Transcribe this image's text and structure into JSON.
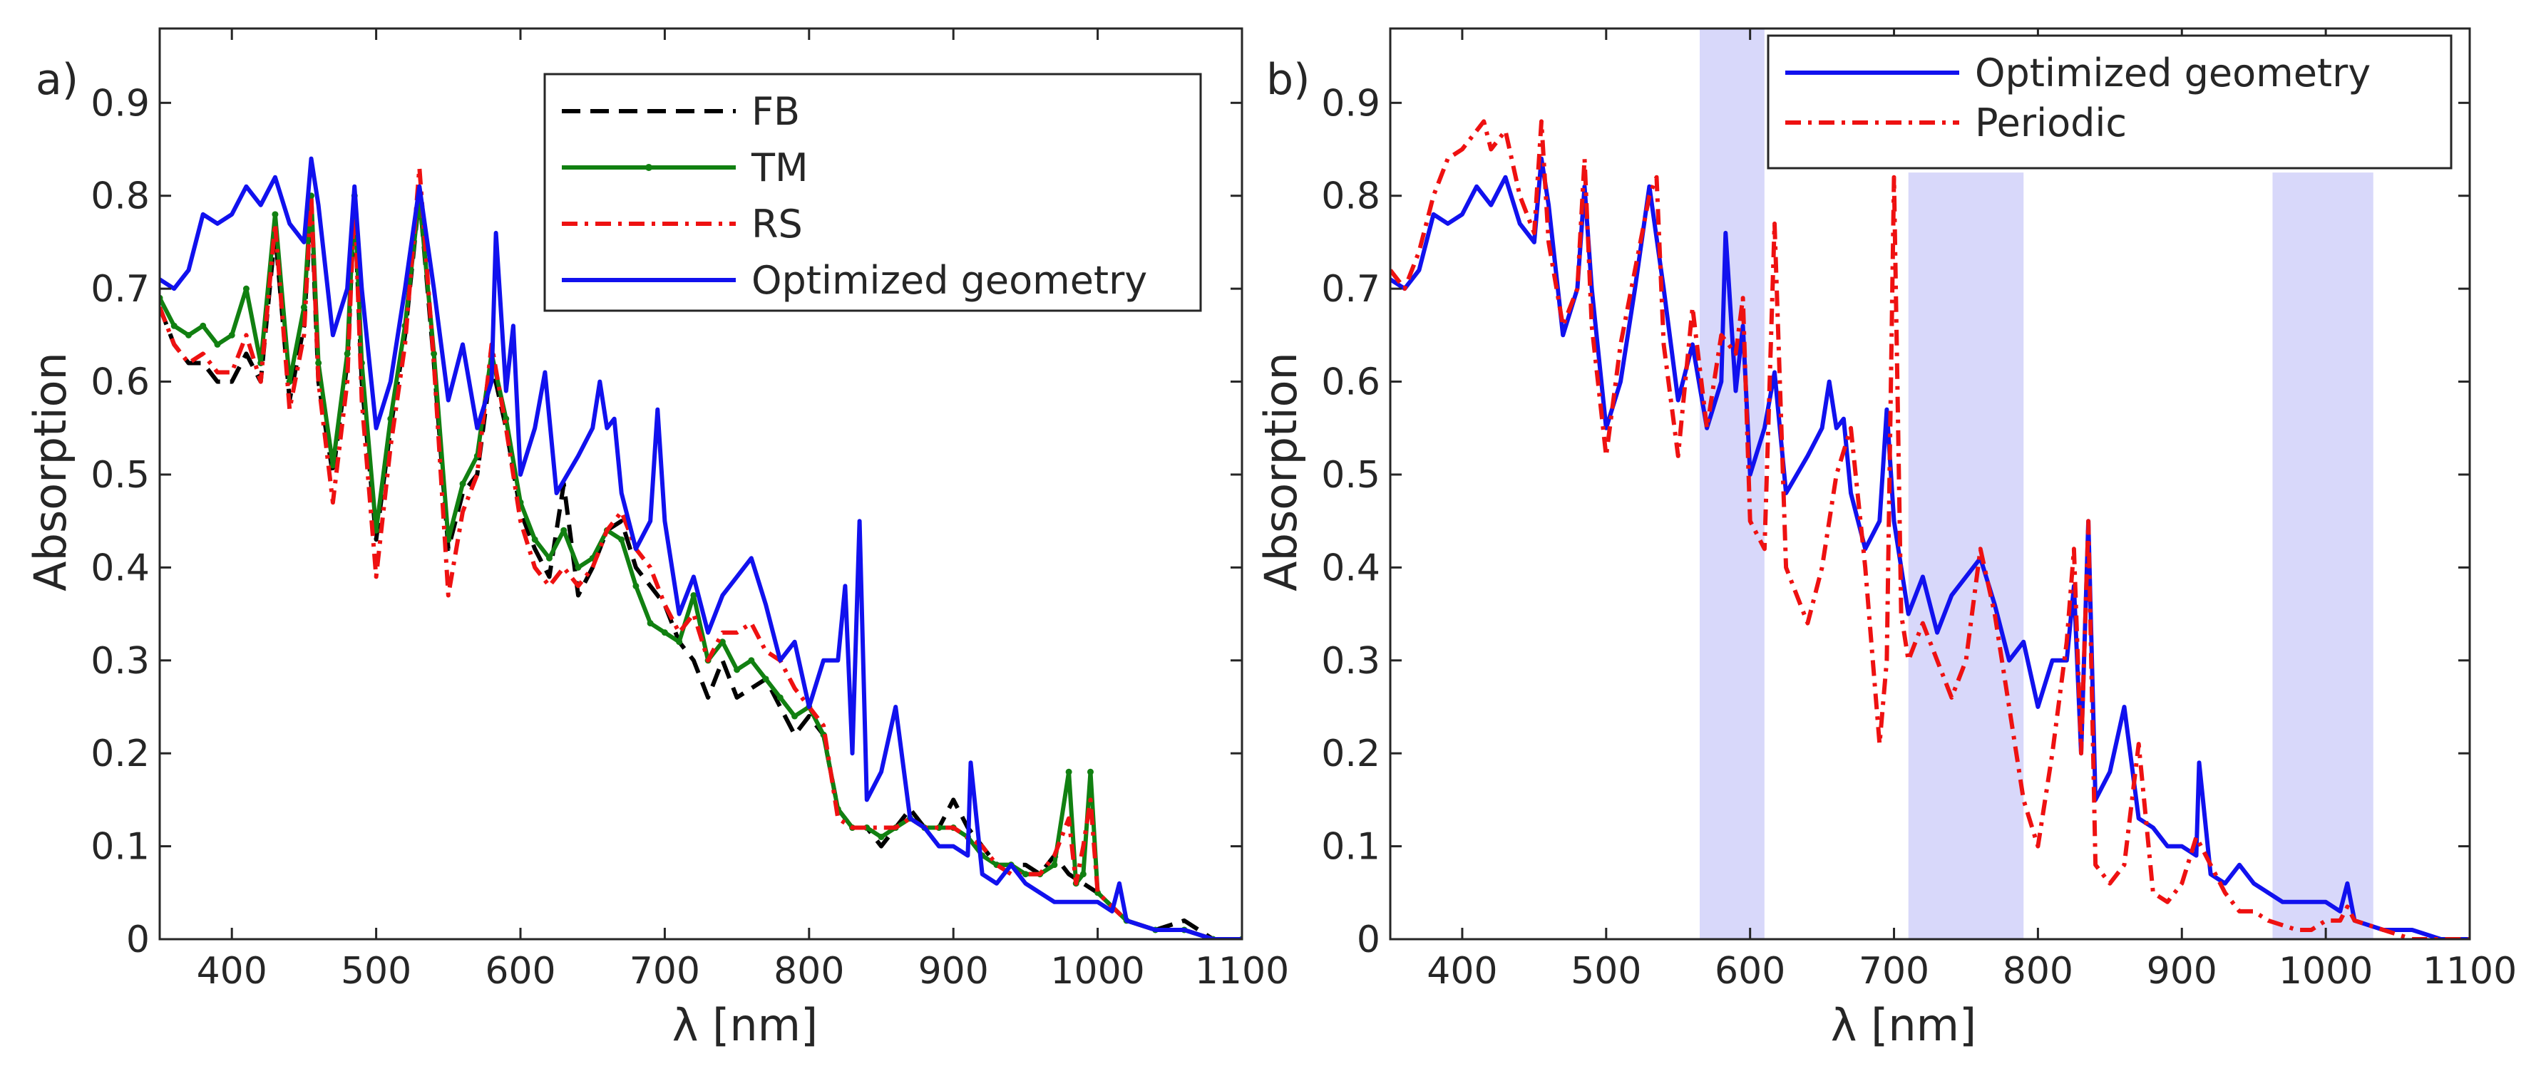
{
  "chart_data": [
    {
      "type": "line",
      "panel_label": "a)",
      "xlabel": "λ [nm]",
      "ylabel": "Absorption",
      "xlim": [
        350,
        1100
      ],
      "ylim": [
        0,
        0.98
      ],
      "xticks": [
        400,
        500,
        600,
        700,
        800,
        900,
        1000,
        1100
      ],
      "yticks": [
        0,
        0.1,
        0.2,
        0.3,
        0.4,
        0.5,
        0.6,
        0.7,
        0.8,
        0.9
      ],
      "ytick_labels": [
        "0",
        "0.1",
        "0.2",
        "0.3",
        "0.4",
        "0.5",
        "0.6",
        "0.7",
        "0.8",
        "0.9"
      ],
      "grid": false,
      "legend_position": "top-right",
      "series": [
        {
          "name": "FB",
          "color": "#000000",
          "style": "dashed",
          "x": [
            350,
            360,
            370,
            380,
            390,
            400,
            410,
            420,
            430,
            440,
            450,
            455,
            460,
            470,
            480,
            485,
            490,
            500,
            510,
            520,
            530,
            540,
            550,
            560,
            570,
            580,
            590,
            600,
            610,
            620,
            630,
            640,
            650,
            660,
            670,
            680,
            690,
            700,
            710,
            720,
            730,
            740,
            750,
            760,
            770,
            780,
            790,
            800,
            810,
            820,
            830,
            840,
            850,
            860,
            870,
            880,
            890,
            900,
            910,
            920,
            930,
            940,
            950,
            960,
            970,
            980,
            990,
            1000,
            1020,
            1040,
            1060,
            1080,
            1100
          ],
          "y": [
            0.68,
            0.64,
            0.62,
            0.62,
            0.6,
            0.6,
            0.63,
            0.6,
            0.76,
            0.58,
            0.66,
            0.79,
            0.6,
            0.5,
            0.62,
            0.79,
            0.6,
            0.43,
            0.55,
            0.65,
            0.8,
            0.62,
            0.42,
            0.48,
            0.5,
            0.62,
            0.55,
            0.46,
            0.42,
            0.39,
            0.49,
            0.37,
            0.4,
            0.44,
            0.45,
            0.4,
            0.38,
            0.36,
            0.32,
            0.3,
            0.26,
            0.3,
            0.26,
            0.27,
            0.28,
            0.25,
            0.22,
            0.24,
            0.22,
            0.14,
            0.12,
            0.12,
            0.1,
            0.12,
            0.14,
            0.12,
            0.12,
            0.15,
            0.12,
            0.1,
            0.08,
            0.08,
            0.08,
            0.07,
            0.09,
            0.07,
            0.06,
            0.05,
            0.02,
            0.01,
            0.02,
            0.0,
            0.0
          ]
        },
        {
          "name": "TM",
          "color": "#118011",
          "style": "solid-dot",
          "x": [
            350,
            360,
            370,
            380,
            390,
            400,
            410,
            420,
            430,
            440,
            450,
            455,
            460,
            470,
            480,
            485,
            490,
            500,
            510,
            520,
            530,
            540,
            550,
            560,
            570,
            580,
            590,
            600,
            610,
            620,
            630,
            640,
            650,
            660,
            670,
            680,
            690,
            700,
            710,
            720,
            730,
            740,
            750,
            760,
            770,
            780,
            790,
            800,
            810,
            820,
            830,
            840,
            850,
            860,
            870,
            880,
            890,
            900,
            910,
            920,
            930,
            940,
            950,
            960,
            970,
            980,
            985,
            990,
            995,
            1000,
            1020,
            1040,
            1060,
            1080,
            1100
          ],
          "y": [
            0.69,
            0.66,
            0.65,
            0.66,
            0.64,
            0.65,
            0.7,
            0.62,
            0.78,
            0.6,
            0.68,
            0.8,
            0.62,
            0.51,
            0.63,
            0.8,
            0.62,
            0.44,
            0.56,
            0.66,
            0.8,
            0.63,
            0.43,
            0.49,
            0.52,
            0.63,
            0.56,
            0.47,
            0.43,
            0.41,
            0.44,
            0.4,
            0.41,
            0.44,
            0.43,
            0.38,
            0.34,
            0.33,
            0.32,
            0.37,
            0.3,
            0.32,
            0.29,
            0.3,
            0.28,
            0.26,
            0.24,
            0.25,
            0.22,
            0.14,
            0.12,
            0.12,
            0.11,
            0.12,
            0.13,
            0.12,
            0.12,
            0.12,
            0.11,
            0.09,
            0.08,
            0.08,
            0.07,
            0.07,
            0.08,
            0.18,
            0.06,
            0.07,
            0.18,
            0.05,
            0.02,
            0.01,
            0.01,
            0.0,
            0.0
          ]
        },
        {
          "name": "RS",
          "color": "#ee1111",
          "style": "dashdot",
          "x": [
            350,
            360,
            370,
            380,
            390,
            400,
            410,
            420,
            430,
            440,
            450,
            455,
            460,
            470,
            480,
            485,
            490,
            500,
            510,
            520,
            530,
            540,
            550,
            560,
            570,
            580,
            590,
            600,
            610,
            620,
            630,
            640,
            650,
            660,
            670,
            680,
            690,
            700,
            710,
            720,
            730,
            740,
            750,
            760,
            770,
            780,
            790,
            800,
            810,
            820,
            830,
            840,
            850,
            860,
            870,
            880,
            890,
            900,
            910,
            920,
            930,
            940,
            950,
            960,
            970,
            980,
            985,
            990,
            995,
            1000,
            1020,
            1040,
            1060,
            1080,
            1100
          ],
          "y": [
            0.68,
            0.64,
            0.62,
            0.63,
            0.61,
            0.61,
            0.65,
            0.6,
            0.77,
            0.57,
            0.65,
            0.8,
            0.6,
            0.47,
            0.6,
            0.8,
            0.58,
            0.39,
            0.53,
            0.64,
            0.83,
            0.62,
            0.37,
            0.46,
            0.5,
            0.64,
            0.55,
            0.45,
            0.4,
            0.38,
            0.4,
            0.38,
            0.4,
            0.44,
            0.46,
            0.42,
            0.4,
            0.36,
            0.33,
            0.35,
            0.3,
            0.33,
            0.33,
            0.34,
            0.31,
            0.3,
            0.27,
            0.25,
            0.23,
            0.13,
            0.12,
            0.12,
            0.12,
            0.12,
            0.13,
            0.12,
            0.12,
            0.12,
            0.11,
            0.1,
            0.08,
            0.07,
            0.07,
            0.07,
            0.09,
            0.13,
            0.06,
            0.1,
            0.15,
            0.05,
            0.02,
            0.01,
            0.01,
            0.0,
            0.0
          ]
        },
        {
          "name": "Optimized geometry",
          "color": "#1111ee",
          "style": "solid",
          "x": [
            350,
            360,
            370,
            380,
            390,
            400,
            410,
            420,
            430,
            440,
            450,
            455,
            460,
            470,
            480,
            485,
            490,
            500,
            510,
            520,
            530,
            540,
            550,
            560,
            570,
            580,
            583,
            590,
            595,
            600,
            610,
            617,
            625,
            640,
            650,
            655,
            660,
            665,
            670,
            680,
            690,
            695,
            700,
            710,
            720,
            730,
            740,
            750,
            760,
            770,
            780,
            790,
            800,
            810,
            820,
            825,
            830,
            835,
            840,
            850,
            860,
            870,
            880,
            890,
            900,
            910,
            912,
            920,
            930,
            940,
            950,
            960,
            970,
            980,
            990,
            1000,
            1010,
            1015,
            1020,
            1040,
            1060,
            1080,
            1100
          ],
          "y": [
            0.71,
            0.7,
            0.72,
            0.78,
            0.77,
            0.78,
            0.81,
            0.79,
            0.82,
            0.77,
            0.75,
            0.84,
            0.79,
            0.65,
            0.7,
            0.81,
            0.7,
            0.55,
            0.6,
            0.7,
            0.81,
            0.7,
            0.58,
            0.64,
            0.55,
            0.6,
            0.76,
            0.59,
            0.66,
            0.5,
            0.55,
            0.61,
            0.48,
            0.52,
            0.55,
            0.6,
            0.55,
            0.56,
            0.48,
            0.42,
            0.45,
            0.57,
            0.45,
            0.35,
            0.39,
            0.33,
            0.37,
            0.39,
            0.41,
            0.36,
            0.3,
            0.32,
            0.25,
            0.3,
            0.3,
            0.38,
            0.2,
            0.45,
            0.15,
            0.18,
            0.25,
            0.13,
            0.12,
            0.1,
            0.1,
            0.09,
            0.19,
            0.07,
            0.06,
            0.08,
            0.06,
            0.05,
            0.04,
            0.04,
            0.04,
            0.04,
            0.03,
            0.06,
            0.02,
            0.01,
            0.01,
            0.0,
            0.0
          ]
        }
      ]
    },
    {
      "type": "line",
      "panel_label": "b)",
      "xlabel": "λ [nm]",
      "ylabel": "Absorption",
      "xlim": [
        350,
        1100
      ],
      "ylim": [
        0,
        0.98
      ],
      "xticks": [
        400,
        500,
        600,
        700,
        800,
        900,
        1000,
        1100
      ],
      "yticks": [
        0,
        0.1,
        0.2,
        0.3,
        0.4,
        0.5,
        0.6,
        0.7,
        0.8,
        0.9
      ],
      "ytick_labels": [
        "0",
        "0.1",
        "0.2",
        "0.3",
        "0.4",
        "0.5",
        "0.6",
        "0.7",
        "0.8",
        "0.9"
      ],
      "grid": false,
      "legend_position": "top-right",
      "shaded_bands": [
        {
          "x_range": [
            565,
            610
          ],
          "y_top": 0.98,
          "color": "#d8d8fa"
        },
        {
          "x_range": [
            710,
            790
          ],
          "y_top": 0.825,
          "color": "#d8d8fa"
        },
        {
          "x_range": [
            963,
            1033
          ],
          "y_top": 0.825,
          "color": "#d8d8fa"
        }
      ],
      "series": [
        {
          "name": "Optimized geometry",
          "color": "#1111ee",
          "style": "solid",
          "x": [
            350,
            360,
            370,
            380,
            390,
            400,
            410,
            420,
            430,
            440,
            450,
            455,
            460,
            470,
            480,
            485,
            490,
            500,
            510,
            520,
            530,
            540,
            550,
            560,
            570,
            580,
            583,
            590,
            595,
            600,
            610,
            617,
            625,
            640,
            650,
            655,
            660,
            665,
            670,
            680,
            690,
            695,
            700,
            710,
            720,
            730,
            740,
            750,
            760,
            770,
            780,
            790,
            800,
            810,
            820,
            825,
            830,
            835,
            840,
            850,
            860,
            870,
            880,
            890,
            900,
            910,
            912,
            920,
            930,
            940,
            950,
            960,
            970,
            980,
            990,
            1000,
            1010,
            1015,
            1020,
            1040,
            1060,
            1080,
            1100
          ],
          "y": [
            0.71,
            0.7,
            0.72,
            0.78,
            0.77,
            0.78,
            0.81,
            0.79,
            0.82,
            0.77,
            0.75,
            0.84,
            0.79,
            0.65,
            0.7,
            0.81,
            0.7,
            0.55,
            0.6,
            0.7,
            0.81,
            0.7,
            0.58,
            0.64,
            0.55,
            0.6,
            0.76,
            0.59,
            0.66,
            0.5,
            0.55,
            0.61,
            0.48,
            0.52,
            0.55,
            0.6,
            0.55,
            0.56,
            0.48,
            0.42,
            0.45,
            0.57,
            0.45,
            0.35,
            0.39,
            0.33,
            0.37,
            0.39,
            0.41,
            0.36,
            0.3,
            0.32,
            0.25,
            0.3,
            0.3,
            0.38,
            0.2,
            0.45,
            0.15,
            0.18,
            0.25,
            0.13,
            0.12,
            0.1,
            0.1,
            0.09,
            0.19,
            0.07,
            0.06,
            0.08,
            0.06,
            0.05,
            0.04,
            0.04,
            0.04,
            0.04,
            0.03,
            0.06,
            0.02,
            0.01,
            0.01,
            0.0,
            0.0
          ]
        },
        {
          "name": "Periodic",
          "color": "#ee1111",
          "style": "dashdot",
          "x": [
            350,
            360,
            370,
            380,
            390,
            400,
            410,
            415,
            420,
            430,
            440,
            450,
            455,
            460,
            470,
            480,
            485,
            490,
            500,
            510,
            520,
            530,
            535,
            540,
            550,
            560,
            570,
            580,
            590,
            595,
            600,
            610,
            617,
            625,
            640,
            650,
            660,
            670,
            680,
            690,
            695,
            700,
            705,
            710,
            720,
            730,
            740,
            750,
            760,
            770,
            780,
            790,
            800,
            810,
            820,
            825,
            830,
            835,
            840,
            850,
            860,
            870,
            880,
            890,
            900,
            910,
            920,
            930,
            940,
            950,
            960,
            970,
            980,
            990,
            1000,
            1010,
            1015,
            1020,
            1040,
            1060,
            1080,
            1100
          ],
          "y": [
            0.72,
            0.7,
            0.74,
            0.8,
            0.84,
            0.85,
            0.87,
            0.88,
            0.85,
            0.87,
            0.8,
            0.76,
            0.88,
            0.75,
            0.66,
            0.7,
            0.84,
            0.66,
            0.52,
            0.64,
            0.72,
            0.8,
            0.82,
            0.64,
            0.52,
            0.68,
            0.55,
            0.65,
            0.63,
            0.69,
            0.45,
            0.42,
            0.77,
            0.4,
            0.34,
            0.4,
            0.5,
            0.55,
            0.4,
            0.21,
            0.3,
            0.82,
            0.35,
            0.3,
            0.34,
            0.3,
            0.26,
            0.3,
            0.42,
            0.35,
            0.25,
            0.15,
            0.1,
            0.2,
            0.32,
            0.42,
            0.2,
            0.45,
            0.08,
            0.06,
            0.08,
            0.21,
            0.05,
            0.04,
            0.06,
            0.11,
            0.08,
            0.05,
            0.03,
            0.03,
            0.02,
            0.015,
            0.01,
            0.01,
            0.02,
            0.02,
            0.035,
            0.02,
            0.01,
            0.0,
            0.0,
            0.0
          ]
        }
      ]
    }
  ]
}
